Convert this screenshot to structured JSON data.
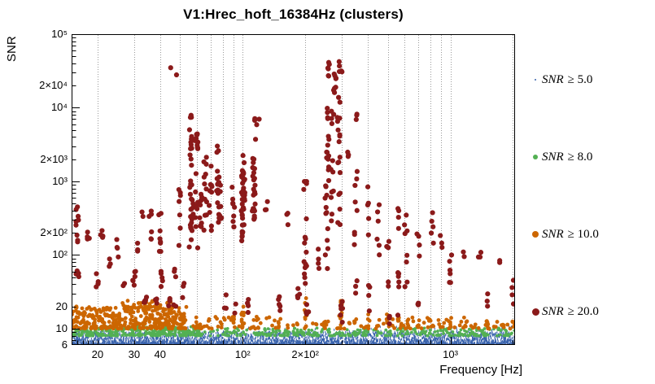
{
  "chart_data": {
    "type": "scatter",
    "title": "V1:Hrec_hoft_16384Hz (clusters)",
    "xlabel": "Frequency [Hz]",
    "ylabel": "SNR",
    "xscale": "log",
    "yscale": "log",
    "xlim": [
      15,
      2048
    ],
    "ylim": [
      6,
      100000
    ],
    "grid": {
      "style": "dotted",
      "color": "#9a9a9a",
      "vertical_lines_hz": [
        20,
        30,
        40,
        50,
        60,
        70,
        80,
        90,
        100,
        200,
        300,
        400,
        500,
        600,
        700,
        800,
        900,
        1000,
        2000
      ]
    },
    "xticks": [
      {
        "value": 20,
        "label": "20"
      },
      {
        "value": 30,
        "label": "30"
      },
      {
        "value": 40,
        "label": "40"
      },
      {
        "value": 100,
        "label": "10²"
      },
      {
        "value": 200,
        "label": "2×10²"
      },
      {
        "value": 1000,
        "label": "10³"
      }
    ],
    "yticks": [
      {
        "value": 100000,
        "label": "10⁵"
      },
      {
        "value": 20000,
        "label": "2×10⁴"
      },
      {
        "value": 10000,
        "label": "10⁴"
      },
      {
        "value": 2000,
        "label": "2×10³"
      },
      {
        "value": 1000,
        "label": "10³"
      },
      {
        "value": 200,
        "label": "2×10²"
      },
      {
        "value": 100,
        "label": "10²"
      },
      {
        "value": 20,
        "label": "20"
      },
      {
        "value": 10,
        "label": "10"
      },
      {
        "value": 6,
        "label": "6"
      }
    ],
    "legend": [
      {
        "var": "SNR",
        "rest": "≥ 5.0",
        "color": "#3862ad",
        "marker_radius": 1.3
      },
      {
        "var": "SNR",
        "rest": "≥ 8.0",
        "color": "#53b053",
        "marker_radius": 3
      },
      {
        "var": "SNR",
        "rest": "≥ 10.0",
        "color": "#cc6600",
        "marker_radius": 4
      },
      {
        "var": "SNR",
        "rest": "≥ 20.0",
        "color": "#8b1a1a",
        "marker_radius": 4.5
      }
    ],
    "series": [
      {
        "name": "SNR ≥ 5.0",
        "threshold": 5.0,
        "color": "#3862ad",
        "marker": "vtick",
        "size": 1.0,
        "bands": [
          [
            15,
            2048,
            6,
            9,
            3800,
            2.2
          ],
          [
            15,
            2048,
            6,
            10.6,
            320,
            1.1
          ]
        ]
      },
      {
        "name": "SNR ≥ 8.0",
        "threshold": 8.0,
        "color": "#53b053",
        "marker": "dot",
        "size": 1.9,
        "bands": [
          [
            15,
            2048,
            8,
            10.2,
            430,
            1.7
          ],
          [
            15,
            62,
            8,
            10.6,
            190,
            1.4
          ]
        ]
      },
      {
        "name": "SNR ≥ 10.0",
        "threshold": 10.0,
        "color": "#cc6600",
        "marker": "dot",
        "size": 2.4,
        "bands": [
          [
            15,
            54,
            10,
            20,
            330,
            1.6
          ],
          [
            26,
            46,
            16,
            24,
            55,
            1.3
          ],
          [
            55,
            2048,
            10,
            15,
            115,
            1.8
          ]
        ],
        "columns": [
          [
            60,
            10,
            17,
            6
          ],
          [
            68,
            10,
            14,
            4
          ],
          [
            90,
            10,
            16,
            6
          ],
          [
            100,
            10,
            20,
            10
          ],
          [
            118,
            10,
            15,
            5
          ],
          [
            150,
            10,
            14,
            5
          ],
          [
            200,
            10,
            26,
            12
          ],
          [
            250,
            10,
            18,
            6
          ],
          [
            300,
            10,
            24,
            9
          ],
          [
            350,
            10,
            14,
            4
          ],
          [
            400,
            10,
            16,
            5
          ],
          [
            500,
            10,
            18,
            7
          ],
          [
            560,
            10,
            15,
            5
          ],
          [
            620,
            10,
            14,
            4
          ],
          [
            700,
            10,
            13,
            4
          ],
          [
            800,
            10,
            14,
            4
          ],
          [
            1000,
            10,
            16,
            6
          ],
          [
            1200,
            10,
            13,
            3
          ],
          [
            1500,
            10,
            14,
            4
          ],
          [
            1800,
            10,
            12,
            3
          ],
          [
            2000,
            10,
            15,
            4
          ]
        ]
      },
      {
        "name": "SNR ≥ 20.0",
        "threshold": 20.0,
        "color": "#8b1a1a",
        "marker": "dot",
        "size": 3.1,
        "columns": [
          [
            16,
            150,
            420,
            8
          ],
          [
            16,
            30,
            70,
            4
          ],
          [
            18,
            90,
            260,
            5
          ],
          [
            20,
            35,
            60,
            4
          ],
          [
            21,
            140,
            240,
            4
          ],
          [
            23,
            60,
            110,
            3
          ],
          [
            25,
            90,
            200,
            4
          ],
          [
            27,
            35,
            55,
            2
          ],
          [
            30,
            28,
            60,
            6
          ],
          [
            31,
            105,
            150,
            3
          ],
          [
            33,
            320,
            430,
            2
          ],
          [
            34,
            20,
            27,
            5
          ],
          [
            36,
            150,
            400,
            6
          ],
          [
            38,
            20,
            26,
            4
          ],
          [
            40,
            100,
            430,
            8
          ],
          [
            41,
            28,
            60,
            5
          ],
          [
            44,
            20,
            30,
            4
          ],
          [
            47,
            20,
            70,
            5
          ],
          [
            50,
            90,
            1000,
            7
          ],
          [
            52,
            25,
            45,
            3
          ],
          [
            56,
            120,
            9000,
            22
          ],
          [
            57,
            200,
            700,
            12
          ],
          [
            60,
            100,
            5000,
            18
          ],
          [
            63,
            200,
            800,
            8
          ],
          [
            66,
            150,
            2500,
            12
          ],
          [
            70,
            200,
            2200,
            10
          ],
          [
            76,
            250,
            3200,
            14
          ],
          [
            78,
            300,
            1200,
            10
          ],
          [
            82,
            18,
            30,
            3
          ],
          [
            90,
            180,
            900,
            9
          ],
          [
            92,
            15,
            25,
            2
          ],
          [
            100,
            150,
            2300,
            30
          ],
          [
            101,
            250,
            1500,
            15
          ],
          [
            107,
            14,
            30,
            4
          ],
          [
            113,
            250,
            2200,
            24
          ],
          [
            115,
            3000,
            7500,
            4
          ],
          [
            130,
            400,
            700,
            3
          ],
          [
            150,
            14,
            30,
            5
          ],
          [
            165,
            200,
            420,
            3
          ],
          [
            185,
            25,
            60,
            4
          ],
          [
            200,
            30,
            1000,
            16
          ],
          [
            205,
            12,
            25,
            5
          ],
          [
            230,
            60,
            130,
            4
          ],
          [
            253,
            60,
            900,
            12
          ],
          [
            256,
            1000,
            30000,
            16
          ],
          [
            258,
            25000,
            42000,
            6
          ],
          [
            270,
            200,
            9000,
            12
          ],
          [
            278,
            15000,
            35000,
            8
          ],
          [
            290,
            150,
            28000,
            18
          ],
          [
            296,
            30000,
            43000,
            5
          ],
          [
            300,
            12,
            35,
            6
          ],
          [
            320,
            1500,
            2600,
            3
          ],
          [
            350,
            120,
            9000,
            11
          ],
          [
            355,
            30,
            60,
            3
          ],
          [
            400,
            180,
            900,
            5
          ],
          [
            405,
            15,
            40,
            4
          ],
          [
            450,
            100,
            650,
            6
          ],
          [
            500,
            30,
            280,
            6
          ],
          [
            505,
            11,
            18,
            3
          ],
          [
            560,
            14,
            500,
            10
          ],
          [
            610,
            30,
            380,
            8
          ],
          [
            700,
            90,
            280,
            4
          ],
          [
            705,
            16,
            24,
            3
          ],
          [
            820,
            110,
            480,
            5
          ],
          [
            900,
            90,
            190,
            3
          ],
          [
            1000,
            14,
            140,
            6
          ],
          [
            1150,
            90,
            115,
            2
          ],
          [
            1380,
            85,
            120,
            3
          ],
          [
            1500,
            18,
            30,
            3
          ],
          [
            1750,
            70,
            100,
            2
          ],
          [
            2000,
            18,
            55,
            4
          ]
        ],
        "points": [
          [
            45,
            35000
          ],
          [
            48,
            28000
          ],
          [
            120,
            7000
          ],
          [
            16,
            450
          ]
        ]
      }
    ]
  }
}
